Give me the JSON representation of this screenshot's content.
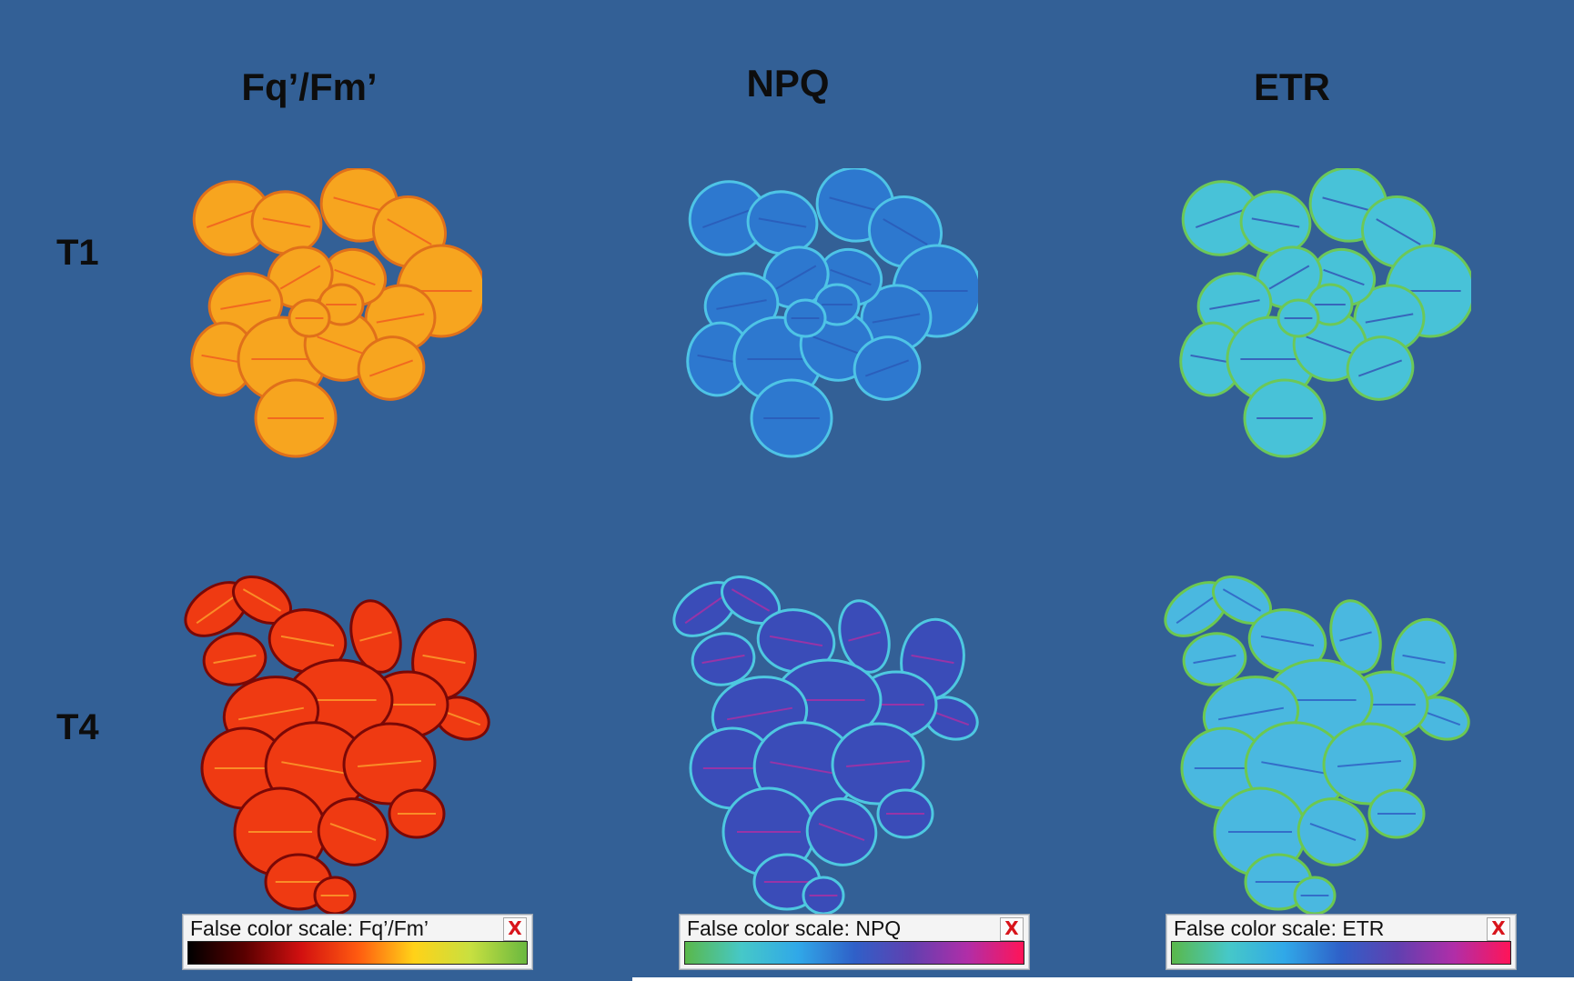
{
  "columns": [
    {
      "title": "Fq’/Fm’"
    },
    {
      "title": "NPQ"
    },
    {
      "title": "ETR"
    }
  ],
  "rows": [
    {
      "label": "T1"
    },
    {
      "label": "T4"
    }
  ],
  "scales": [
    {
      "title": "False color scale: Fq’/Fm’",
      "close": "X",
      "gradient": [
        "#000000",
        "#5a0000",
        "#d21010",
        "#ff5a10",
        "#ffd218",
        "#c8e040",
        "#6ab840"
      ]
    },
    {
      "title": "False color scale: NPQ",
      "close": "X",
      "gradient": [
        "#5ab84a",
        "#46c8c8",
        "#30a8e8",
        "#2f60c8",
        "#6040b0",
        "#b02ea8",
        "#ff1458"
      ]
    },
    {
      "title": "False color scale: ETR",
      "close": "X",
      "gradient": [
        "#5ab84a",
        "#46c8c8",
        "#30a8e8",
        "#2f60c8",
        "#6040b0",
        "#b02ea8",
        "#ff1458"
      ]
    }
  ],
  "plant_colors": {
    "t1_fq": {
      "fill": "#f7a51f",
      "edge": "#e0701a",
      "vein": "#ef5020"
    },
    "t1_npq": {
      "fill": "#2d78cf",
      "edge": "#4ec4e6",
      "vein": "#2a55b5"
    },
    "t1_etr": {
      "fill": "#48c2d8",
      "edge": "#6cc858",
      "vein": "#3040b0"
    },
    "t4_fq": {
      "fill": "#ef3a12",
      "edge": "#7a0806",
      "vein": "#ffb030"
    },
    "t4_npq": {
      "fill": "#3a4cb8",
      "edge": "#4ec8e0",
      "vein": "#c02aa0"
    },
    "t4_etr": {
      "fill": "#4ab8e0",
      "edge": "#6cc850",
      "vein": "#2a50c0"
    }
  }
}
